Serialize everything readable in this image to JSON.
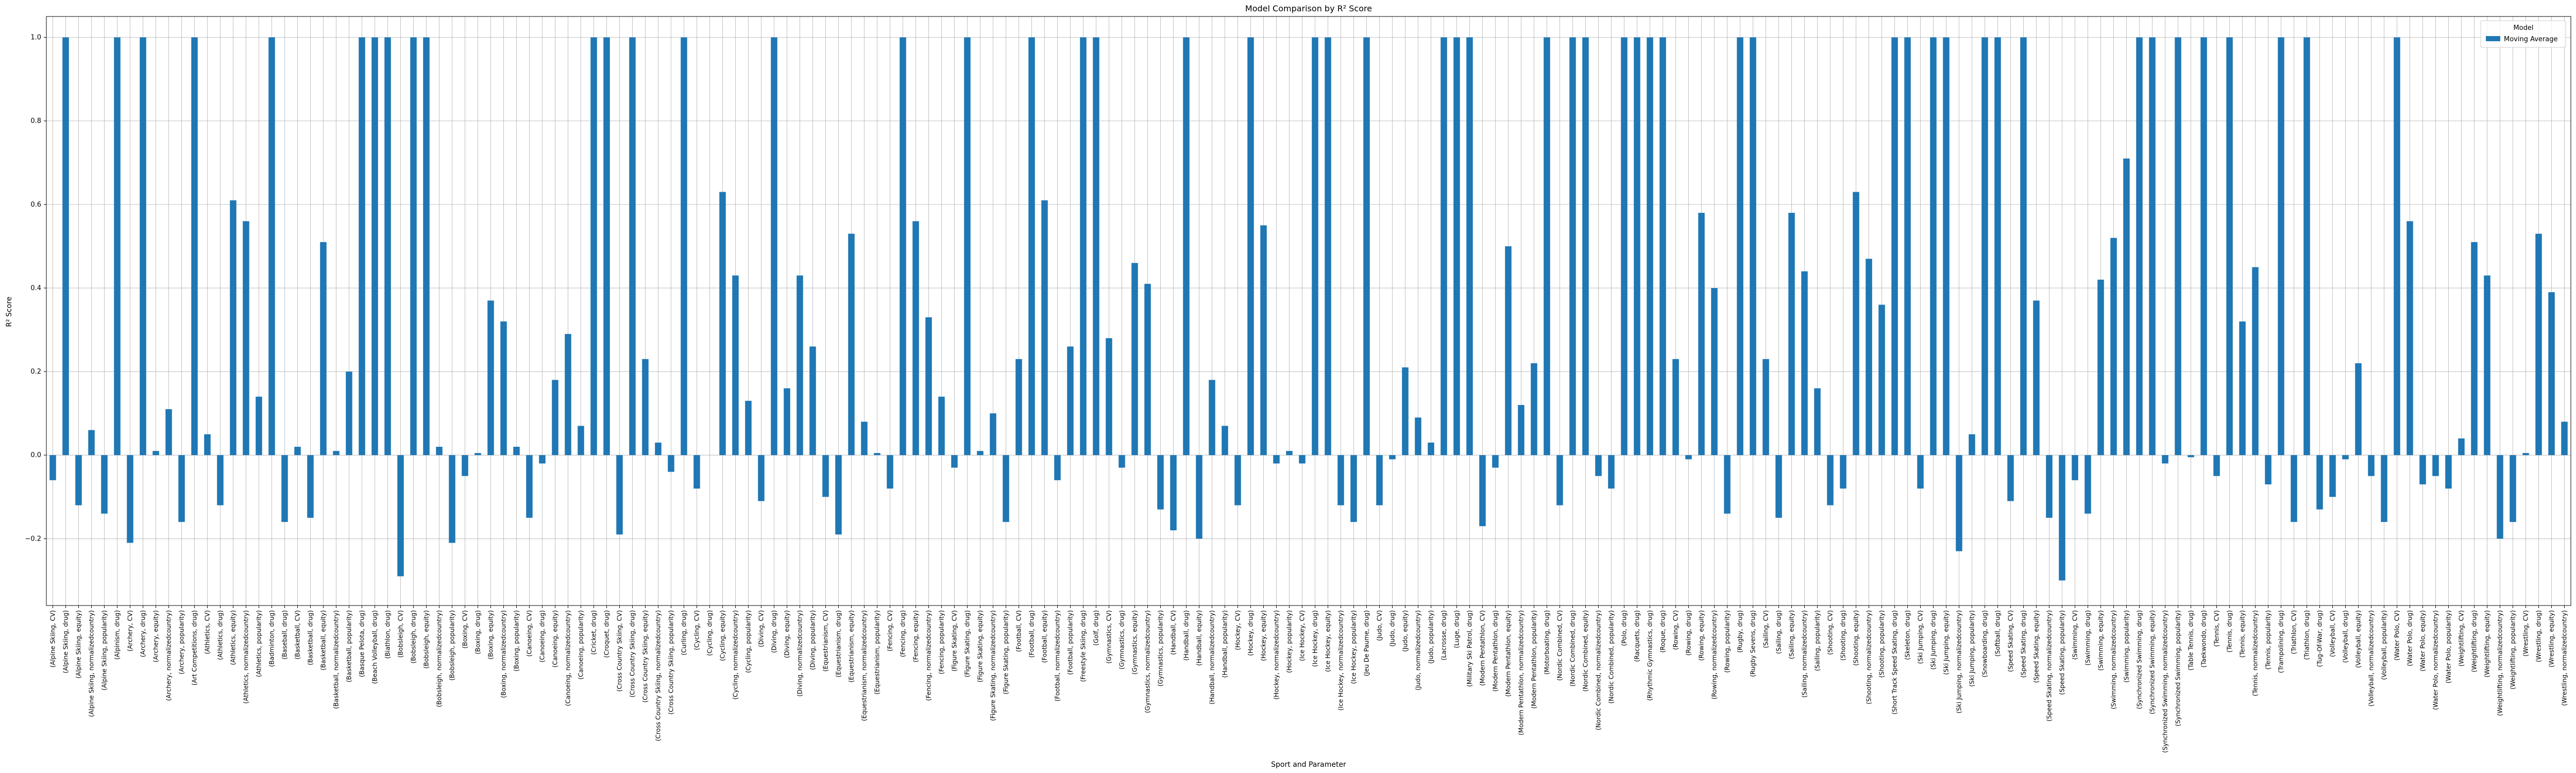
{
  "chart_data": {
    "type": "bar",
    "title": "Model Comparison by R² Score",
    "xlabel": "Sport and Parameter",
    "ylabel": "R² Score",
    "legend_title": "Model",
    "legend_loc": "upper right",
    "grid": true,
    "ylim": [
      -0.36,
      1.05
    ],
    "yticks": [
      {
        "value": -0.2,
        "label": "−0.2"
      },
      {
        "value": 0,
        "label": "0.0"
      },
      0.2,
      0.4,
      0.6,
      0.8,
      {
        "value": 1,
        "label": "1.0"
      }
    ],
    "categories": [
      "(Alpine Skiing, CV)",
      "(Alpine Skiing, drug)",
      "(Alpine Skiing, equity)",
      "(Alpine Skiing, normalizedcountry)",
      "(Alpine Skiing, popularity)",
      "(Alpinism, drug)",
      "(Archery, CV)",
      "(Archery, drug)",
      "(Archery, equity)",
      "(Archery, normalizedcountry)",
      "(Archery, popularity)",
      "(Art Competitions, drug)",
      "(Athletics, CV)",
      "(Athletics, drug)",
      "(Athletics, equity)",
      "(Athletics, normalizedcountry)",
      "(Athletics, popularity)",
      "(Badminton, drug)",
      "(Baseball, drug)",
      "(Basketball, CV)",
      "(Basketball, drug)",
      "(Basketball, equity)",
      "(Basketball, normalizedcountry)",
      "(Basketball, popularity)",
      "(Basque Pelota, drug)",
      "(Beach Volleyball, drug)",
      "(Biathlon, drug)",
      "(Bobsleigh, CV)",
      "(Bobsleigh, drug)",
      "(Bobsleigh, equity)",
      "(Bobsleigh, normalizedcountry)",
      "(Bobsleigh, popularity)",
      "(Boxing, CV)",
      "(Boxing, drug)",
      "(Boxing, equity)",
      "(Boxing, normalizedcountry)",
      "(Boxing, popularity)",
      "(Canoeing, CV)",
      "(Canoeing, drug)",
      "(Canoeing, equity)",
      "(Canoeing, normalizedcountry)",
      "(Canoeing, popularity)",
      "(Cricket, drug)",
      "(Croquet, drug)",
      "(Cross Country Skiing, CV)",
      "(Cross Country Skiing, drug)",
      "(Cross Country Skiing, equity)",
      "(Cross Country Skiing, normalizedcountry)",
      "(Cross Country Skiing, popularity)",
      "(Curling, drug)",
      "(Cycling, CV)",
      "(Cycling, drug)",
      "(Cycling, equity)",
      "(Cycling, normalizedcountry)",
      "(Cycling, popularity)",
      "(Diving, CV)",
      "(Diving, drug)",
      "(Diving, equity)",
      "(Diving, normalizedcountry)",
      "(Diving, popularity)",
      "(Equestrianism, CV)",
      "(Equestrianism, drug)",
      "(Equestrianism, equity)",
      "(Equestrianism, normalizedcountry)",
      "(Equestrianism, popularity)",
      "(Fencing, CV)",
      "(Fencing, drug)",
      "(Fencing, equity)",
      "(Fencing, normalizedcountry)",
      "(Fencing, popularity)",
      "(Figure Skating, CV)",
      "(Figure Skating, drug)",
      "(Figure Skating, equity)",
      "(Figure Skating, normalizedcountry)",
      "(Figure Skating, popularity)",
      "(Football, CV)",
      "(Football, drug)",
      "(Football, equity)",
      "(Football, normalizedcountry)",
      "(Football, popularity)",
      "(Freestyle Skiing, drug)",
      "(Golf, drug)",
      "(Gymnastics, CV)",
      "(Gymnastics, drug)",
      "(Gymnastics, equity)",
      "(Gymnastics, normalizedcountry)",
      "(Gymnastics, popularity)",
      "(Handball, CV)",
      "(Handball, drug)",
      "(Handball, equity)",
      "(Handball, normalizedcountry)",
      "(Handball, popularity)",
      "(Hockey, CV)",
      "(Hockey, drug)",
      "(Hockey, equity)",
      "(Hockey, normalizedcountry)",
      "(Hockey, popularity)",
      "(Ice Hockey, CV)",
      "(Ice Hockey, drug)",
      "(Ice Hockey, equity)",
      "(Ice Hockey, normalizedcountry)",
      "(Ice Hockey, popularity)",
      "(Jeu De Paume, drug)",
      "(Judo, CV)",
      "(Judo, drug)",
      "(Judo, equity)",
      "(Judo, normalizedcountry)",
      "(Judo, popularity)",
      "(Lacrosse, drug)",
      "(Luge, drug)",
      "(Military Ski Patrol, drug)",
      "(Modern Pentathlon, CV)",
      "(Modern Pentathlon, drug)",
      "(Modern Pentathlon, equity)",
      "(Modern Pentathlon, normalizedcountry)",
      "(Modern Pentathlon, popularity)",
      "(Motorboating, drug)",
      "(Nordic Combined, CV)",
      "(Nordic Combined, drug)",
      "(Nordic Combined, equity)",
      "(Nordic Combined, normalizedcountry)",
      "(Nordic Combined, popularity)",
      "(Polo, drug)",
      "(Racquets, drug)",
      "(Rhythmic Gymnastics, drug)",
      "(Roque, drug)",
      "(Rowing, CV)",
      "(Rowing, drug)",
      "(Rowing, equity)",
      "(Rowing, normalizedcountry)",
      "(Rowing, popularity)",
      "(Rugby, drug)",
      "(Rugby Sevens, drug)",
      "(Sailing, CV)",
      "(Sailing, drug)",
      "(Sailing, equity)",
      "(Sailing, normalizedcountry)",
      "(Sailing, popularity)",
      "(Shooting, CV)",
      "(Shooting, drug)",
      "(Shooting, equity)",
      "(Shooting, normalizedcountry)",
      "(Shooting, popularity)",
      "(Short Track Speed Skating, drug)",
      "(Skeleton, drug)",
      "(Ski Jumping, CV)",
      "(Ski Jumping, drug)",
      "(Ski Jumping, equity)",
      "(Ski Jumping, normalizedcountry)",
      "(Ski Jumping, popularity)",
      "(Snowboarding, drug)",
      "(Softball, drug)",
      "(Speed Skating, CV)",
      "(Speed Skating, drug)",
      "(Speed Skating, equity)",
      "(Speed Skating, normalizedcountry)",
      "(Speed Skating, popularity)",
      "(Swimming, CV)",
      "(Swimming, drug)",
      "(Swimming, equity)",
      "(Swimming, normalizedcountry)",
      "(Swimming, popularity)",
      "(Synchronized Swimming, drug)",
      "(Synchronized Swimming, equity)",
      "(Synchronized Swimming, normalizedcountry)",
      "(Synchronized Swimming, popularity)",
      "(Table Tennis, drug)",
      "(Taekwondo, drug)",
      "(Tennis, CV)",
      "(Tennis, drug)",
      "(Tennis, equity)",
      "(Tennis, normalizedcountry)",
      "(Tennis, popularity)",
      "(Trampolining, drug)",
      "(Triathlon, CV)",
      "(Triathlon, drug)",
      "(Tug-Of-War, drug)",
      "(Volleyball, CV)",
      "(Volleyball, drug)",
      "(Volleyball, equity)",
      "(Volleyball, normalizedcountry)",
      "(Volleyball, popularity)",
      "(Water Polo, CV)",
      "(Water Polo, drug)",
      "(Water Polo, equity)",
      "(Water Polo, normalizedcountry)",
      "(Water Polo, popularity)",
      "(Weightlifting, CV)",
      "(Weightlifting, drug)",
      "(Weightlifting, equity)",
      "(Weightlifting, normalizedcountry)",
      "(Weightlifting, popularity)",
      "(Wrestling, CV)",
      "(Wrestling, drug)",
      "(Wrestling, equity)",
      "(Wrestling, normalizedcountry)"
    ],
    "series": [
      {
        "name": "Moving Average",
        "color": "#1f77b4",
        "values": [
          -0.06,
          1,
          -0.12,
          0.06,
          -0.14,
          1,
          -0.21,
          1,
          0.01,
          0.11,
          -0.16,
          1,
          0.05,
          -0.12,
          0.61,
          0.56,
          0.14,
          1,
          -0.16,
          0.02,
          -0.15,
          0.51,
          0.01,
          0.2,
          1,
          1,
          1,
          -0.29,
          1,
          1,
          0.02,
          -0.21,
          -0.05,
          0.005,
          0.37,
          0.32,
          0.02,
          -0.15,
          -0.02,
          0.18,
          0.29,
          0.07,
          1,
          1,
          -0.19,
          1,
          0.23,
          0.03,
          -0.04,
          1,
          -0.08,
          0,
          0.63,
          0.43,
          0.13,
          -0.11,
          1,
          0.16,
          0.43,
          0.26,
          -0.1,
          -0.19,
          0.53,
          0.08,
          0.005,
          -0.08,
          1,
          0.56,
          0.33,
          0.14,
          -0.03,
          1,
          0.01,
          0.1,
          -0.16,
          0.23,
          1,
          0.61,
          -0.06,
          0.26,
          1,
          1,
          0.28,
          -0.03,
          0.46,
          0.41,
          -0.13,
          -0.18,
          1,
          -0.2,
          0.18,
          0.07,
          -0.12,
          1,
          0.55,
          -0.02,
          0.01,
          -0.02,
          1,
          1,
          -0.12,
          -0.16,
          1,
          -0.12,
          -0.01,
          0.21,
          0.09,
          0.03,
          1,
          1,
          1,
          -0.17,
          -0.03,
          0.5,
          0.12,
          0.22,
          1,
          -0.12,
          1,
          1,
          -0.05,
          -0.08,
          1,
          1,
          1,
          1,
          0.23,
          -0.01,
          0.58,
          0.4,
          -0.14,
          1,
          1,
          0.23,
          -0.15,
          0.58,
          0.44,
          0.16,
          -0.12,
          -0.08,
          0.63,
          0.47,
          0.36,
          1,
          1,
          -0.08,
          1,
          1,
          -0.23,
          0.05,
          1,
          1,
          -0.11,
          1,
          0.37,
          -0.15,
          -0.3,
          -0.06,
          -0.14,
          0.42,
          0.52,
          0.71,
          1,
          1,
          -0.02,
          1,
          -0.005,
          1,
          -0.05,
          1,
          0.32,
          0.45,
          -0.07,
          1,
          -0.16,
          1,
          -0.13,
          -0.1,
          -0.01,
          0.22,
          -0.05,
          -0.16,
          1,
          0.56,
          -0.07,
          -0.05,
          -0.08,
          0.04,
          0.51,
          0.43,
          -0.2,
          -0.16,
          0.005,
          0.53,
          0.39,
          0.08
        ]
      }
    ]
  }
}
